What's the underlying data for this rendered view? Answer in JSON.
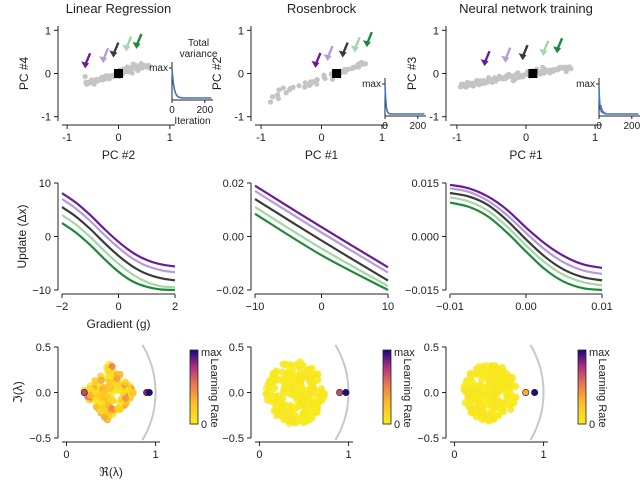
{
  "colors": {
    "purple": "#6a1b9a",
    "lilac": "#b39ddb",
    "dark": "#3a3a3a",
    "lightgreen": "#a5d6a7",
    "green": "#1b8a3a",
    "scatter": "#c4c4c4",
    "inset_line": "#4472c4",
    "arc": "#c8c8c8",
    "axis": "#222222"
  },
  "chart_data": [
    {
      "id": "lr-pca",
      "type": "scatter",
      "title": "Linear Regression",
      "xlabel": "PC #2",
      "ylabel": "PC #4",
      "xlim": [
        -1.1,
        1.1
      ],
      "ylim": [
        -1.1,
        1.1
      ],
      "xticks": [
        -1,
        0,
        1
      ],
      "yticks": [
        -1,
        0,
        1
      ],
      "trajectory": {
        "x_range": [
          -0.65,
          0.6
        ],
        "slope": 0.35,
        "spread": 0.04,
        "n": 80
      },
      "fixed_point": {
        "x": 0,
        "y": 0
      },
      "arrows": [
        {
          "x": -0.65,
          "y": 0.05,
          "color": "purple"
        },
        {
          "x": -0.3,
          "y": 0.17,
          "color": "lilac"
        },
        {
          "x": -0.1,
          "y": 0.3,
          "color": "dark"
        },
        {
          "x": 0.15,
          "y": 0.44,
          "color": "lightgreen"
        },
        {
          "x": 0.35,
          "y": 0.5,
          "color": "green"
        }
      ],
      "inset": {
        "title": [
          "Total",
          "variance"
        ],
        "ylabel": "max",
        "xlabel": "Iteration",
        "xlim": [
          0,
          250
        ],
        "xticks": [
          0,
          200
        ],
        "curve": {
          "type": "decay",
          "tau": 12
        }
      }
    },
    {
      "id": "rb-pca",
      "type": "scatter",
      "title": "Rosenbrock",
      "xlabel": "PC #1",
      "ylabel": "PC #2",
      "xlim": [
        -1.1,
        1.1
      ],
      "ylim": [
        -1.1,
        1.1
      ],
      "xticks": [
        -1,
        0,
        1
      ],
      "yticks": [
        -1,
        0,
        1
      ],
      "trajectory": {
        "x_range": [
          -0.85,
          0.75
        ],
        "slope": 0.48,
        "spread": 0.05,
        "n": 45,
        "sparse": true
      },
      "fixed_point": {
        "x": 0.25,
        "y": 0
      },
      "arrows": [
        {
          "x": -0.1,
          "y": 0.06,
          "color": "purple"
        },
        {
          "x": 0.1,
          "y": 0.22,
          "color": "lilac"
        },
        {
          "x": 0.35,
          "y": 0.3,
          "color": "dark"
        },
        {
          "x": 0.55,
          "y": 0.42,
          "color": "lightgreen"
        },
        {
          "x": 0.75,
          "y": 0.54,
          "color": "green"
        }
      ],
      "inset": {
        "ylabel": "max",
        "xlim": [
          0,
          250
        ],
        "xticks": [
          0,
          200
        ],
        "curve": {
          "type": "decay",
          "tau": 6
        }
      }
    },
    {
      "id": "nn-pca",
      "type": "scatter",
      "title": "Neural network training",
      "xlabel": "PC #1",
      "ylabel": "PC #3",
      "xlim": [
        -1.1,
        1.1
      ],
      "ylim": [
        -1.1,
        1.1
      ],
      "xticks": [
        -1,
        0,
        1
      ],
      "yticks": [
        -1,
        0,
        1
      ],
      "trajectory": {
        "x_range": [
          -0.95,
          0.65
        ],
        "slope": 0.27,
        "spread": 0.035,
        "n": 95
      },
      "fixed_point": {
        "x": 0.1,
        "y": 0
      },
      "arrows": [
        {
          "x": -0.6,
          "y": 0.1,
          "color": "purple"
        },
        {
          "x": -0.3,
          "y": 0.18,
          "color": "lilac"
        },
        {
          "x": -0.05,
          "y": 0.24,
          "color": "dark"
        },
        {
          "x": 0.25,
          "y": 0.34,
          "color": "lightgreen"
        },
        {
          "x": 0.45,
          "y": 0.4,
          "color": "green"
        }
      ],
      "inset": {
        "ylabel": "max",
        "xlim": [
          0,
          250
        ],
        "xticks": [
          0,
          200
        ],
        "curve": {
          "type": "spiky"
        }
      }
    },
    {
      "id": "lr-update",
      "type": "line",
      "xlabel": "Gradient (g)",
      "ylabel": "Update (Δx)",
      "xlim": [
        -2,
        2
      ],
      "ylim": [
        -10,
        10
      ],
      "xticks": [
        -2,
        0,
        2
      ],
      "yticks": [
        -10,
        0,
        10
      ],
      "tick_labels_x": [
        "−2",
        "0",
        "2"
      ],
      "tick_labels_y": [
        "−10",
        "0",
        "10"
      ],
      "series": [
        {
          "name": "lr-1",
          "color": "purple",
          "points": [
            [
              -2,
              8.1
            ],
            [
              -1.5,
              6.3
            ],
            [
              -1,
              4.0
            ],
            [
              -0.5,
              1.4
            ],
            [
              0,
              -1.0
            ],
            [
              0.5,
              -3.0
            ],
            [
              1,
              -4.4
            ],
            [
              1.5,
              -5.2
            ],
            [
              2,
              -5.6
            ]
          ]
        },
        {
          "name": "lr-2",
          "color": "lilac",
          "points": [
            [
              -2,
              7.0
            ],
            [
              -1.5,
              5.2
            ],
            [
              -1,
              2.9
            ],
            [
              -0.5,
              0.3
            ],
            [
              0,
              -2.1
            ],
            [
              0.5,
              -4.1
            ],
            [
              1,
              -5.5
            ],
            [
              1.5,
              -6.3
            ],
            [
              2,
              -6.7
            ]
          ]
        },
        {
          "name": "lr-3",
          "color": "dark",
          "points": [
            [
              -2,
              5.5
            ],
            [
              -1.5,
              3.7
            ],
            [
              -1,
              1.4
            ],
            [
              -0.5,
              -1.2
            ],
            [
              0,
              -3.6
            ],
            [
              0.5,
              -5.6
            ],
            [
              1,
              -7.0
            ],
            [
              1.5,
              -7.8
            ],
            [
              2,
              -8.2
            ]
          ]
        },
        {
          "name": "lr-4",
          "color": "lightgreen",
          "points": [
            [
              -2,
              4.0
            ],
            [
              -1.5,
              2.2
            ],
            [
              -1,
              -0.1
            ],
            [
              -0.5,
              -2.7
            ],
            [
              0,
              -5.1
            ],
            [
              0.5,
              -7.1
            ],
            [
              1,
              -8.5
            ],
            [
              1.5,
              -9.3
            ],
            [
              2,
              -9.5
            ]
          ]
        },
        {
          "name": "lr-5",
          "color": "green",
          "points": [
            [
              -2,
              2.5
            ],
            [
              -1.5,
              0.7
            ],
            [
              -1,
              -1.6
            ],
            [
              -0.5,
              -4.2
            ],
            [
              0,
              -6.6
            ],
            [
              0.5,
              -8.4
            ],
            [
              1,
              -9.4
            ],
            [
              1.5,
              -9.9
            ],
            [
              2,
              -10.0
            ]
          ]
        }
      ]
    },
    {
      "id": "rb-update",
      "type": "line",
      "xlabel": "",
      "ylabel": "",
      "xlim": [
        -10,
        10
      ],
      "ylim": [
        -0.02,
        0.02
      ],
      "xticks": [
        -10,
        0,
        10
      ],
      "yticks": [
        -0.02,
        0,
        0.02
      ],
      "tick_labels_x": [
        "−10",
        "0",
        "10"
      ],
      "tick_labels_y": [
        "−0.02",
        "0.00",
        "0.02"
      ],
      "series": [
        {
          "name": "rb-1",
          "color": "purple",
          "points": [
            [
              -10,
              0.019
            ],
            [
              0,
              0.0035
            ],
            [
              10,
              -0.0115
            ]
          ]
        },
        {
          "name": "rb-2",
          "color": "lilac",
          "points": [
            [
              -10,
              0.017
            ],
            [
              0,
              0.0015
            ],
            [
              10,
              -0.0135
            ]
          ]
        },
        {
          "name": "rb-3",
          "color": "dark",
          "points": [
            [
              -10,
              0.014
            ],
            [
              0,
              -0.0015
            ],
            [
              10,
              -0.0165
            ]
          ]
        },
        {
          "name": "rb-4",
          "color": "lightgreen",
          "points": [
            [
              -10,
              0.011
            ],
            [
              0,
              -0.0045
            ],
            [
              10,
              -0.0185
            ]
          ]
        },
        {
          "name": "rb-5",
          "color": "green",
          "points": [
            [
              -10,
              0.0085
            ],
            [
              0,
              -0.007
            ],
            [
              10,
              -0.02
            ]
          ]
        }
      ]
    },
    {
      "id": "nn-update",
      "type": "line",
      "xlabel": "",
      "ylabel": "",
      "xlim": [
        -0.01,
        0.01
      ],
      "ylim": [
        -0.015,
        0.015
      ],
      "xticks": [
        -0.01,
        0,
        0.01
      ],
      "yticks": [
        -0.015,
        0,
        0.015
      ],
      "tick_labels_x": [
        "−0.01",
        "0.00",
        "0.01"
      ],
      "tick_labels_y": [
        "−0.015",
        "0.000",
        "0.015"
      ],
      "series": [
        {
          "name": "nn-1",
          "color": "purple",
          "points": [
            [
              -0.01,
              0.0145
            ],
            [
              -0.0075,
              0.0135
            ],
            [
              -0.005,
              0.0112
            ],
            [
              -0.0025,
              0.0075
            ],
            [
              0,
              0.0025
            ],
            [
              0.0025,
              -0.002
            ],
            [
              0.005,
              -0.0055
            ],
            [
              0.0075,
              -0.0078
            ],
            [
              0.01,
              -0.0088
            ]
          ]
        },
        {
          "name": "nn-2",
          "color": "lilac",
          "points": [
            [
              -0.01,
              0.0135
            ],
            [
              -0.0075,
              0.0125
            ],
            [
              -0.005,
              0.01
            ],
            [
              -0.0025,
              0.006
            ],
            [
              0,
              0.001
            ],
            [
              0.0025,
              -0.0037
            ],
            [
              0.005,
              -0.0073
            ],
            [
              0.0075,
              -0.0095
            ],
            [
              0.01,
              -0.0105
            ]
          ]
        },
        {
          "name": "nn-3",
          "color": "dark",
          "points": [
            [
              -0.01,
              0.0122
            ],
            [
              -0.0075,
              0.0112
            ],
            [
              -0.005,
              0.0088
            ],
            [
              -0.0025,
              0.0045
            ],
            [
              0,
              -0.0008
            ],
            [
              0.0025,
              -0.0057
            ],
            [
              0.005,
              -0.0093
            ],
            [
              0.0075,
              -0.0114
            ],
            [
              0.01,
              -0.0123
            ]
          ]
        },
        {
          "name": "nn-4",
          "color": "lightgreen",
          "points": [
            [
              -0.01,
              0.011
            ],
            [
              -0.0075,
              0.0098
            ],
            [
              -0.005,
              0.0072
            ],
            [
              -0.0025,
              0.0028
            ],
            [
              0,
              -0.0025
            ],
            [
              0.0025,
              -0.0073
            ],
            [
              0.005,
              -0.0108
            ],
            [
              0.0075,
              -0.0128
            ],
            [
              0.01,
              -0.0137
            ]
          ]
        },
        {
          "name": "nn-5",
          "color": "green",
          "points": [
            [
              -0.01,
              0.0095
            ],
            [
              -0.0075,
              0.0083
            ],
            [
              -0.005,
              0.0056
            ],
            [
              -0.0025,
              0.0011
            ],
            [
              0,
              -0.0042
            ],
            [
              0.0025,
              -0.0092
            ],
            [
              0.005,
              -0.0127
            ],
            [
              0.0075,
              -0.0145
            ],
            [
              0.01,
              -0.015
            ]
          ]
        }
      ]
    },
    {
      "id": "lr-eig",
      "type": "scatter",
      "xlabel": "ℜ(λ)",
      "ylabel": "ℑ(λ)",
      "xlim": [
        -0.05,
        1.05
      ],
      "ylim": [
        -0.5,
        0.5
      ],
      "xticks": [
        0,
        1
      ],
      "yticks": [
        -0.5,
        0,
        0.5
      ],
      "tick_labels_x": [
        "0",
        "1"
      ],
      "tick_labels_y": [
        "−0.5",
        "0.0",
        "0.5"
      ],
      "cloud": {
        "type": "ellipse",
        "cx": 0.48,
        "cy": 0,
        "rx": 0.3,
        "ry": 0.33,
        "n": 150,
        "colormode": "mixed"
      },
      "points": [
        {
          "x": 0.2,
          "y": 0.0,
          "c": 0.72
        },
        {
          "x": 0.9,
          "y": 0.0,
          "c": 0.85
        },
        {
          "x": 0.93,
          "y": 0.0,
          "c": 1.0
        }
      ],
      "arc_radius": 1.0,
      "colorbar": {
        "label": "Learning Rate",
        "top": "max",
        "bottom": "0"
      }
    },
    {
      "id": "rb-eig",
      "type": "scatter",
      "xlabel": "",
      "ylabel": "",
      "xlim": [
        -0.05,
        1.05
      ],
      "ylim": [
        -0.5,
        0.5
      ],
      "xticks": [
        0,
        1
      ],
      "yticks": [
        -0.5,
        0,
        0.5
      ],
      "tick_labels_x": [
        "0",
        "1"
      ],
      "tick_labels_y": [
        "−0.5",
        "0.0",
        "0.5"
      ],
      "cloud": {
        "type": "disk",
        "cx": 0.4,
        "cy": 0,
        "r": 0.33,
        "n": 240,
        "colormode": "yellow"
      },
      "points": [
        {
          "x": 0.9,
          "y": 0.0,
          "c": 0.7
        },
        {
          "x": 0.97,
          "y": 0.0,
          "c": 1.0
        }
      ],
      "arc_radius": 1.0,
      "colorbar": {
        "label": "Learning Rate",
        "top": "max",
        "bottom": "0"
      }
    },
    {
      "id": "nn-eig",
      "type": "scatter",
      "xlabel": "",
      "ylabel": "",
      "xlim": [
        -0.05,
        1.05
      ],
      "ylim": [
        -0.5,
        0.5
      ],
      "xticks": [
        0,
        1
      ],
      "yticks": [
        -0.5,
        0,
        0.5
      ],
      "tick_labels_x": [
        "0",
        "1"
      ],
      "tick_labels_y": [
        "−0.5",
        "0.0",
        "0.5"
      ],
      "cloud": {
        "type": "disk",
        "cx": 0.4,
        "cy": 0,
        "r": 0.3,
        "n": 230,
        "colormode": "yellow"
      },
      "points": [
        {
          "x": 0.8,
          "y": 0.0,
          "c": 0.35
        },
        {
          "x": 0.9,
          "y": 0.0,
          "c": 1.0
        }
      ],
      "arc_radius": 1.0,
      "colorbar": {
        "label": "Learning Rate",
        "top": "max",
        "bottom": "0"
      }
    }
  ]
}
